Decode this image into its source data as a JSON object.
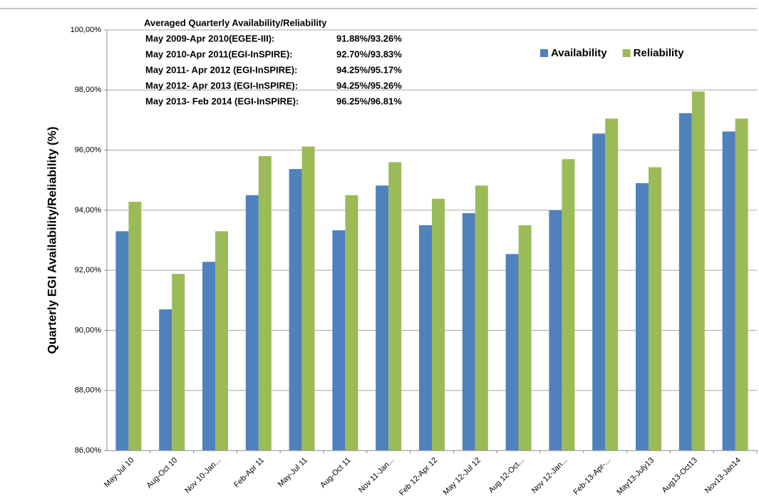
{
  "chart_data": {
    "type": "bar",
    "y_label": "Quarterly EGI Availability/Reliability  (%)",
    "annotation": {
      "title": "Averaged Quarterly Availability/Reliability",
      "rows": [
        {
          "label": "May 2009-Apr 2010(EGEE-III):",
          "value": "91.88%/93.26%"
        },
        {
          "label": "May 2010-Apr 2011(EGI-InSPIRE):",
          "value": "92.70%/93.83%"
        },
        {
          "label": "May 2011- Apr 2012 (EGI-InSPIRE):",
          "value": "94.25%/95.17%"
        },
        {
          "label": "May 2012- Apr 2013 (EGI-InSPIRE):",
          "value": "94.25%/95.26%"
        },
        {
          "label": "May 2013- Feb 2014 (EGI-InSPIRE):",
          "value": "96.25%/96.81%"
        }
      ]
    },
    "categories": [
      "May-Jul 10",
      "Aug-Oct 10",
      "Nov 10-Jan...",
      "Feb-Apr 11",
      "May-Jul 11",
      "Aug-Oct 11",
      "Nov 11-Jan...",
      "Feb 12-Apr 12",
      "May 12-Jul 12",
      "Aug 12-Oct...",
      "Nov 12-Jan...",
      "Feb-13-Apr-...",
      "May13-July13",
      "Aug13-Oct13",
      "Nov13-Jan14"
    ],
    "series": [
      {
        "name": "Availability",
        "color": "#4f81bd",
        "values": [
          93.3,
          90.7,
          92.28,
          94.5,
          95.37,
          93.33,
          94.82,
          93.5,
          93.9,
          92.54,
          94.0,
          96.55,
          94.9,
          97.23,
          96.62
        ]
      },
      {
        "name": "Reliability",
        "color": "#9bbb59",
        "values": [
          94.28,
          91.88,
          93.3,
          95.8,
          96.12,
          94.5,
          95.6,
          94.38,
          94.82,
          93.5,
          95.7,
          97.05,
          95.43,
          97.95,
          97.05
        ]
      }
    ],
    "ylim": [
      86,
      100
    ],
    "yticks": [
      {
        "value": 86,
        "label": "86,00%"
      },
      {
        "value": 88,
        "label": "88,00%"
      },
      {
        "value": 90,
        "label": "90,00%"
      },
      {
        "value": 92,
        "label": "92,00%"
      },
      {
        "value": 94,
        "label": "94,00%"
      },
      {
        "value": 96,
        "label": "96,00%"
      },
      {
        "value": 98,
        "label": "98,00%"
      },
      {
        "value": 100,
        "label": "100,00%"
      }
    ],
    "grid": true,
    "legend": "top-right"
  }
}
